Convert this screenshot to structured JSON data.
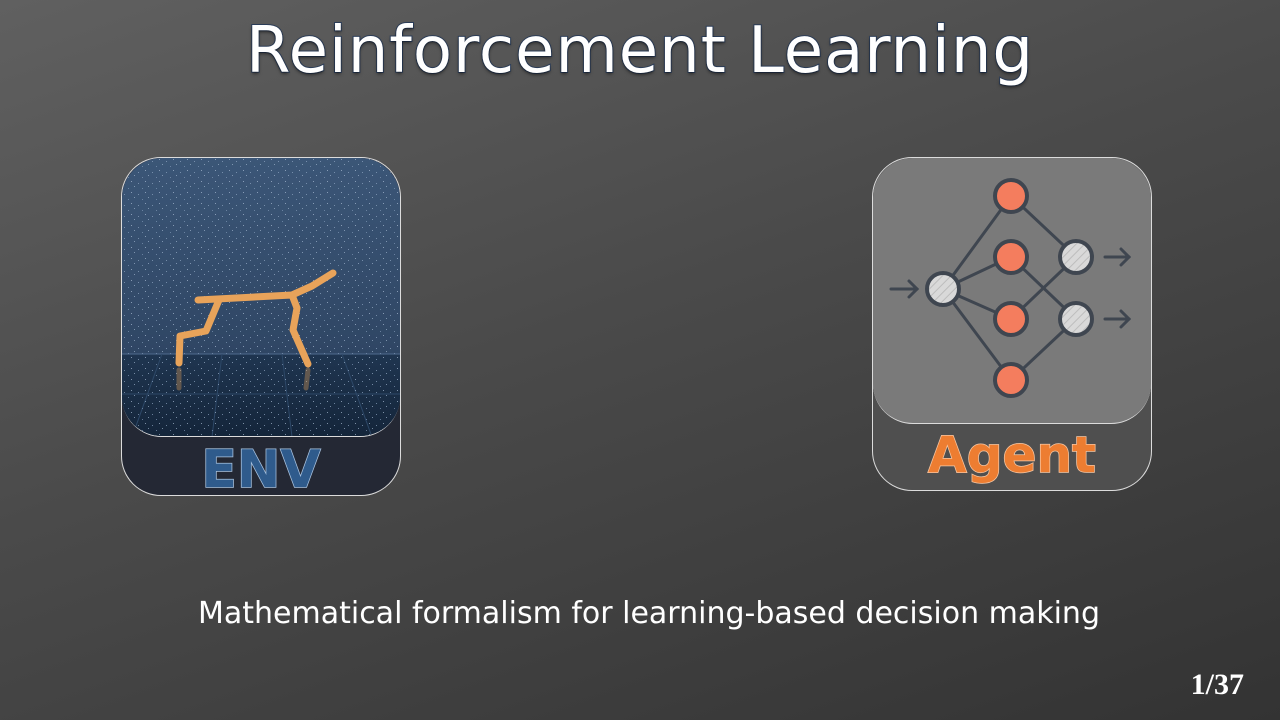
{
  "slide": {
    "title": "Reinforcement Learning",
    "subtitle": "Mathematical formalism for learning-based decision making",
    "page_number": "1/37"
  },
  "env_card": {
    "label": "ENV",
    "label_color": "#2f5b8c",
    "scene_icon": "half-cheetah-robot-icon"
  },
  "agent_card": {
    "label": "Agent",
    "label_color": "#ed7d31",
    "scene_icon": "neural-network-icon"
  },
  "colors": {
    "robot": "#e8a35a",
    "hidden_node": "#f47d5e",
    "io_node": "#d9d9d9",
    "node_stroke": "#3f4650"
  }
}
